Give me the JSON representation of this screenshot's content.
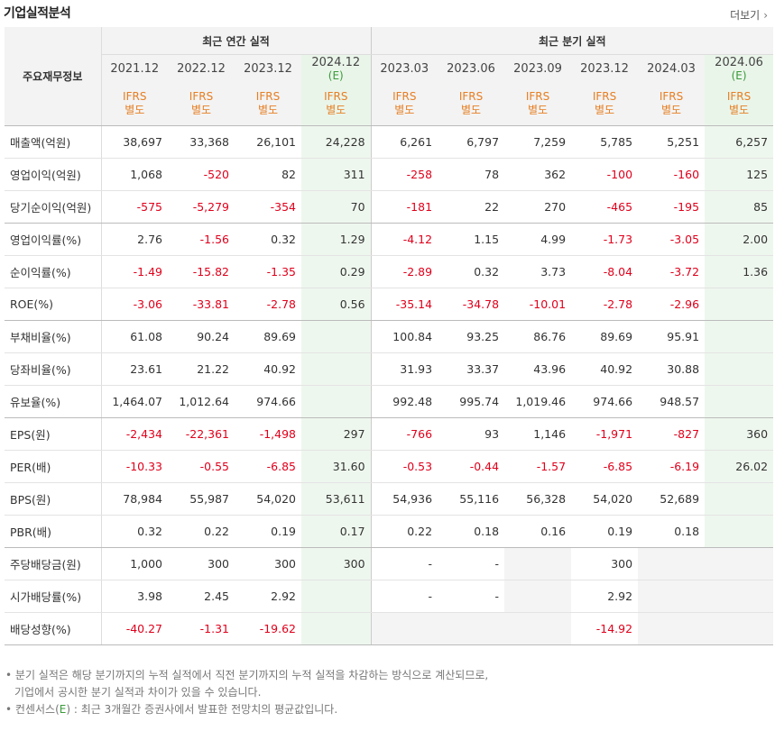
{
  "header": {
    "title": "기업실적분석",
    "more_label": "더보기",
    "more_icon": "chevron-right-icon"
  },
  "columns": {
    "row_label_header": "주요재무정보",
    "annual_group": "최근 연간 실적",
    "quarterly_group": "최근 분기 실적",
    "periods": [
      {
        "label": "2021.12",
        "est": false
      },
      {
        "label": "2022.12",
        "est": false
      },
      {
        "label": "2023.12",
        "est": false
      },
      {
        "label": "2024.12",
        "est": true
      },
      {
        "label": "2023.03",
        "est": false
      },
      {
        "label": "2023.06",
        "est": false
      },
      {
        "label": "2023.09",
        "est": false
      },
      {
        "label": "2023.12",
        "est": false
      },
      {
        "label": "2024.03",
        "est": false
      },
      {
        "label": "2024.06",
        "est": true
      }
    ],
    "est_mark": "(E)",
    "ifrs_line1": "IFRS",
    "ifrs_line2": "별도"
  },
  "rows": [
    {
      "label": "매출액(억원)",
      "values": [
        "38,697",
        "33,368",
        "26,101",
        "24,228",
        "6,261",
        "6,797",
        "7,259",
        "5,785",
        "5,251",
        "6,257"
      ]
    },
    {
      "label": "영업이익(억원)",
      "values": [
        "1,068",
        "-520",
        "82",
        "311",
        "-258",
        "78",
        "362",
        "-100",
        "-160",
        "125"
      ]
    },
    {
      "label": "당기순이익(억원)",
      "values": [
        "-575",
        "-5,279",
        "-354",
        "70",
        "-181",
        "22",
        "270",
        "-465",
        "-195",
        "85"
      ]
    },
    {
      "label": "영업이익률(%)",
      "values": [
        "2.76",
        "-1.56",
        "0.32",
        "1.29",
        "-4.12",
        "1.15",
        "4.99",
        "-1.73",
        "-3.05",
        "2.00"
      ]
    },
    {
      "label": "순이익률(%)",
      "values": [
        "-1.49",
        "-15.82",
        "-1.35",
        "0.29",
        "-2.89",
        "0.32",
        "3.73",
        "-8.04",
        "-3.72",
        "1.36"
      ]
    },
    {
      "label": "ROE(%)",
      "values": [
        "-3.06",
        "-33.81",
        "-2.78",
        "0.56",
        "-35.14",
        "-34.78",
        "-10.01",
        "-2.78",
        "-2.96",
        ""
      ]
    },
    {
      "label": "부채비율(%)",
      "values": [
        "61.08",
        "90.24",
        "89.69",
        "",
        "100.84",
        "93.25",
        "86.76",
        "89.69",
        "95.91",
        ""
      ]
    },
    {
      "label": "당좌비율(%)",
      "values": [
        "23.61",
        "21.22",
        "40.92",
        "",
        "31.93",
        "33.37",
        "43.96",
        "40.92",
        "30.88",
        ""
      ]
    },
    {
      "label": "유보율(%)",
      "values": [
        "1,464.07",
        "1,012.64",
        "974.66",
        "",
        "992.48",
        "995.74",
        "1,019.46",
        "974.66",
        "948.57",
        ""
      ]
    },
    {
      "label": "EPS(원)",
      "values": [
        "-2,434",
        "-22,361",
        "-1,498",
        "297",
        "-766",
        "93",
        "1,146",
        "-1,971",
        "-827",
        "360"
      ]
    },
    {
      "label": "PER(배)",
      "values": [
        "-10.33",
        "-0.55",
        "-6.85",
        "31.60",
        "-0.53",
        "-0.44",
        "-1.57",
        "-6.85",
        "-6.19",
        "26.02"
      ]
    },
    {
      "label": "BPS(원)",
      "values": [
        "78,984",
        "55,987",
        "54,020",
        "53,611",
        "54,936",
        "55,116",
        "56,328",
        "54,020",
        "52,689",
        ""
      ]
    },
    {
      "label": "PBR(배)",
      "values": [
        "0.32",
        "0.22",
        "0.19",
        "0.17",
        "0.22",
        "0.18",
        "0.16",
        "0.19",
        "0.18",
        ""
      ]
    },
    {
      "label": "주당배당금(원)",
      "values": [
        "1,000",
        "300",
        "300",
        "300",
        "-",
        "-",
        "",
        "300",
        "",
        ""
      ]
    },
    {
      "label": "시가배당률(%)",
      "values": [
        "3.98",
        "2.45",
        "2.92",
        "",
        "-",
        "-",
        "",
        "2.92",
        "",
        ""
      ]
    },
    {
      "label": "배당성향(%)",
      "values": [
        "-40.27",
        "-1.31",
        "-19.62",
        "",
        "",
        "",
        "",
        "-14.92",
        "",
        ""
      ]
    }
  ],
  "group_end_rows": [
    2,
    5,
    8,
    12
  ],
  "blank_cells": [
    [
      13,
      6
    ],
    [
      13,
      8
    ],
    [
      13,
      9
    ],
    [
      14,
      6
    ],
    [
      14,
      8
    ],
    [
      14,
      9
    ],
    [
      15,
      4
    ],
    [
      15,
      5
    ],
    [
      15,
      6
    ],
    [
      15,
      8
    ],
    [
      15,
      9
    ]
  ],
  "colors": {
    "negative": "#e0001b",
    "ifrs": "#e67e22",
    "estimate_bg": "#eef7ee",
    "estimate_mark": "#3a9a3a"
  },
  "notes": {
    "line1": "분기 실적은 해당 분기까지의 누적 실적에서 직전 분기까지의 누적 실적을 차감하는 방식으로 계산되므로,",
    "line2": "기업에서 공시한 분기 실적과 차이가 있을 수 있습니다.",
    "line3_prefix": "컨센서스(",
    "line3_mark": "E",
    "line3_suffix": ") : 최근 3개월간 증권사에서 발표한 전망치의 평균값입니다."
  }
}
